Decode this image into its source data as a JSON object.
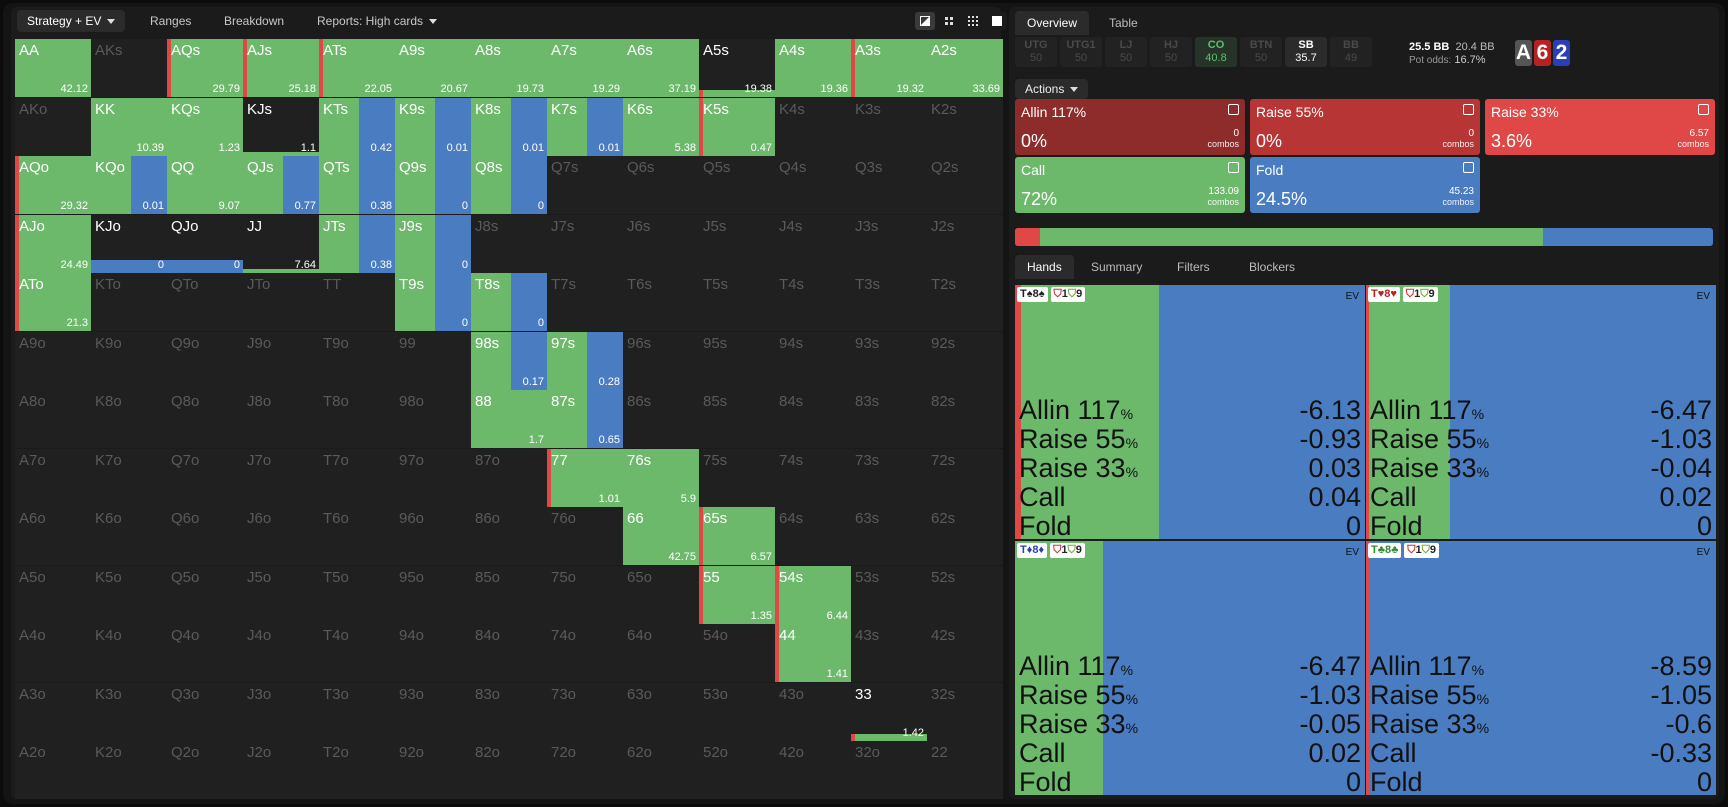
{
  "toolbar": {
    "items": [
      "Strategy + EV",
      "Ranges",
      "Breakdown",
      "Reports: High cards"
    ]
  },
  "right_tabs": [
    "Overview",
    "Table"
  ],
  "seats": [
    {
      "pos": "UTG",
      "stack": "50",
      "state": "fold"
    },
    {
      "pos": "UTG1",
      "stack": "50",
      "state": "fold"
    },
    {
      "pos": "LJ",
      "stack": "50",
      "state": "fold"
    },
    {
      "pos": "HJ",
      "stack": "50",
      "state": "fold"
    },
    {
      "pos": "CO",
      "stack": "40.8",
      "state": "active"
    },
    {
      "pos": "BTN",
      "stack": "50",
      "state": "fold"
    },
    {
      "pos": "SB",
      "stack": "35.7",
      "state": "hero"
    },
    {
      "pos": "BB",
      "stack": "49",
      "state": "fold"
    }
  ],
  "pot": {
    "pot_bb": "25.5 BB",
    "call_bb": "20.4 BB",
    "odds_label": "Pot odds:",
    "odds": "16.7%"
  },
  "board": [
    {
      "rank": "A",
      "color": "#555"
    },
    {
      "rank": "6",
      "color": "#b52222"
    },
    {
      "rank": "2",
      "color": "#2a3fb5"
    }
  ],
  "actions_menu": "Actions",
  "actions": [
    {
      "name": "Allin 117%",
      "pct": "0%",
      "combos": "0",
      "unit": "combos",
      "color": "#8e2b2b"
    },
    {
      "name": "Raise 55%",
      "pct": "0%",
      "combos": "0",
      "unit": "combos",
      "color": "#b83535"
    },
    {
      "name": "Raise 33%",
      "pct": "3.6%",
      "combos": "6.57",
      "unit": "combos",
      "color": "#e04848"
    },
    {
      "name": "Call",
      "pct": "72%",
      "combos": "133.09",
      "unit": "combos",
      "color": "#6db96b"
    },
    {
      "name": "Fold",
      "pct": "24.5%",
      "combos": "45.23",
      "unit": "combos",
      "color": "#4a7cc2"
    }
  ],
  "strategy_bar": {
    "raise33": 3.6,
    "call": 72,
    "fold": 24.5
  },
  "hand_tabs": [
    "Hands",
    "Summary",
    "Filters",
    "Blockers"
  ],
  "colors": {
    "raise": "#e04848",
    "call": "#6db96b",
    "fold": "#4a7cc2"
  },
  "grid_rows": [
    [
      [
        "AA",
        "42.12",
        "g"
      ],
      [
        "AKs",
        "",
        "d"
      ],
      [
        "AQs",
        "29.79",
        "rg"
      ],
      [
        "AJs",
        "25.18",
        "rg"
      ],
      [
        "ATs",
        "22.05",
        "rg"
      ],
      [
        "A9s",
        "20.67",
        "g"
      ],
      [
        "A8s",
        "19.73",
        "g"
      ],
      [
        "A7s",
        "19.29",
        "g"
      ],
      [
        "A6s",
        "37.19",
        "g"
      ],
      [
        "A5s",
        "19.38",
        "gs"
      ],
      [
        "A4s",
        "19.36",
        "g"
      ],
      [
        "A3s",
        "19.32",
        "rg"
      ],
      [
        "A2s",
        "33.69",
        "g"
      ]
    ],
    [
      [
        "AKo",
        "",
        "d"
      ],
      [
        "KK",
        "10.39",
        "g"
      ],
      [
        "KQs",
        "1.23",
        "g"
      ],
      [
        "KJs",
        "1.1",
        "k"
      ],
      [
        "KTs",
        "0.42",
        "gb"
      ],
      [
        "K9s",
        "0.01",
        "gb"
      ],
      [
        "K8s",
        "0.01",
        "gb"
      ],
      [
        "K7s",
        "0.01",
        "gb"
      ],
      [
        "K6s",
        "5.38",
        "g"
      ],
      [
        "K5s",
        "0.47",
        "rg"
      ],
      [
        "K4s",
        "",
        "d"
      ],
      [
        "K3s",
        "",
        "d"
      ],
      [
        "K2s",
        "",
        "d"
      ]
    ],
    [
      [
        "AQo",
        "29.32",
        "rg"
      ],
      [
        "KQo",
        "0.01",
        "gb"
      ],
      [
        "QQ",
        "9.07",
        "g"
      ],
      [
        "QJs",
        "0.77",
        "gb"
      ],
      [
        "QTs",
        "0.38",
        "gb"
      ],
      [
        "Q9s",
        "0",
        "gb"
      ],
      [
        "Q8s",
        "0",
        "gb"
      ],
      [
        "Q7s",
        "",
        "d"
      ],
      [
        "Q6s",
        "",
        "d"
      ],
      [
        "Q5s",
        "",
        "d"
      ],
      [
        "Q4s",
        "",
        "d"
      ],
      [
        "Q3s",
        "",
        "d"
      ],
      [
        "Q2s",
        "",
        "d"
      ]
    ],
    [
      [
        "AJo",
        "24.49",
        "rg"
      ],
      [
        "KJo",
        "0",
        "b"
      ],
      [
        "QJo",
        "0",
        "b"
      ],
      [
        "JJ",
        "7.64",
        "k"
      ],
      [
        "JTs",
        "0.38",
        "gb"
      ],
      [
        "J9s",
        "0",
        "gb"
      ],
      [
        "J8s",
        "",
        "d"
      ],
      [
        "J7s",
        "",
        "d"
      ],
      [
        "J6s",
        "",
        "d"
      ],
      [
        "J5s",
        "",
        "d"
      ],
      [
        "J4s",
        "",
        "d"
      ],
      [
        "J3s",
        "",
        "d"
      ],
      [
        "J2s",
        "",
        "d"
      ]
    ],
    [
      [
        "ATo",
        "21.3",
        "rg"
      ],
      [
        "KTo",
        "",
        "d"
      ],
      [
        "QTo",
        "",
        "d"
      ],
      [
        "JTo",
        "",
        "d"
      ],
      [
        "TT",
        "",
        "d"
      ],
      [
        "T9s",
        "0",
        "gb"
      ],
      [
        "T8s",
        "0",
        "gb"
      ],
      [
        "T7s",
        "",
        "d"
      ],
      [
        "T6s",
        "",
        "d"
      ],
      [
        "T5s",
        "",
        "d"
      ],
      [
        "T4s",
        "",
        "d"
      ],
      [
        "T3s",
        "",
        "d"
      ],
      [
        "T2s",
        "",
        "d"
      ]
    ],
    [
      [
        "A9o",
        "",
        "d"
      ],
      [
        "K9o",
        "",
        "d"
      ],
      [
        "Q9o",
        "",
        "d"
      ],
      [
        "J9o",
        "",
        "d"
      ],
      [
        "T9o",
        "",
        "d"
      ],
      [
        "99",
        "",
        "d"
      ],
      [
        "98s",
        "0.17",
        "gb"
      ],
      [
        "97s",
        "0.28",
        "gb"
      ],
      [
        "96s",
        "",
        "d"
      ],
      [
        "95s",
        "",
        "d"
      ],
      [
        "94s",
        "",
        "d"
      ],
      [
        "93s",
        "",
        "d"
      ],
      [
        "92s",
        "",
        "d"
      ]
    ],
    [
      [
        "A8o",
        "",
        "d"
      ],
      [
        "K8o",
        "",
        "d"
      ],
      [
        "Q8o",
        "",
        "d"
      ],
      [
        "J8o",
        "",
        "d"
      ],
      [
        "T8o",
        "",
        "d"
      ],
      [
        "98o",
        "",
        "d"
      ],
      [
        "88",
        "1.7",
        "g"
      ],
      [
        "87s",
        "0.65",
        "gb"
      ],
      [
        "86s",
        "",
        "d"
      ],
      [
        "85s",
        "",
        "d"
      ],
      [
        "84s",
        "",
        "d"
      ],
      [
        "83s",
        "",
        "d"
      ],
      [
        "82s",
        "",
        "d"
      ]
    ],
    [
      [
        "A7o",
        "",
        "d"
      ],
      [
        "K7o",
        "",
        "d"
      ],
      [
        "Q7o",
        "",
        "d"
      ],
      [
        "J7o",
        "",
        "d"
      ],
      [
        "T7o",
        "",
        "d"
      ],
      [
        "97o",
        "",
        "d"
      ],
      [
        "87o",
        "",
        "d"
      ],
      [
        "77",
        "1.01",
        "rg"
      ],
      [
        "76s",
        "5.9",
        "g"
      ],
      [
        "75s",
        "",
        "d"
      ],
      [
        "74s",
        "",
        "d"
      ],
      [
        "73s",
        "",
        "d"
      ],
      [
        "72s",
        "",
        "d"
      ]
    ],
    [
      [
        "A6o",
        "",
        "d"
      ],
      [
        "K6o",
        "",
        "d"
      ],
      [
        "Q6o",
        "",
        "d"
      ],
      [
        "J6o",
        "",
        "d"
      ],
      [
        "T6o",
        "",
        "d"
      ],
      [
        "96o",
        "",
        "d"
      ],
      [
        "86o",
        "",
        "d"
      ],
      [
        "76o",
        "",
        "d"
      ],
      [
        "66",
        "42.75",
        "g"
      ],
      [
        "65s",
        "6.57",
        "rg"
      ],
      [
        "64s",
        "",
        "d"
      ],
      [
        "63s",
        "",
        "d"
      ],
      [
        "62s",
        "",
        "d"
      ]
    ],
    [
      [
        "A5o",
        "",
        "d"
      ],
      [
        "K5o",
        "",
        "d"
      ],
      [
        "Q5o",
        "",
        "d"
      ],
      [
        "J5o",
        "",
        "d"
      ],
      [
        "T5o",
        "",
        "d"
      ],
      [
        "95o",
        "",
        "d"
      ],
      [
        "85o",
        "",
        "d"
      ],
      [
        "75o",
        "",
        "d"
      ],
      [
        "65o",
        "",
        "d"
      ],
      [
        "55",
        "1.35",
        "rg"
      ],
      [
        "54s",
        "6.44",
        "rg"
      ],
      [
        "53s",
        "",
        "d"
      ],
      [
        "52s",
        "",
        "d"
      ]
    ],
    [
      [
        "A4o",
        "",
        "d"
      ],
      [
        "K4o",
        "",
        "d"
      ],
      [
        "Q4o",
        "",
        "d"
      ],
      [
        "J4o",
        "",
        "d"
      ],
      [
        "T4o",
        "",
        "d"
      ],
      [
        "94o",
        "",
        "d"
      ],
      [
        "84o",
        "",
        "d"
      ],
      [
        "74o",
        "",
        "d"
      ],
      [
        "64o",
        "",
        "d"
      ],
      [
        "54o",
        "",
        "d"
      ],
      [
        "44",
        "1.41",
        "rg"
      ],
      [
        "43s",
        "",
        "d"
      ],
      [
        "42s",
        "",
        "d"
      ]
    ],
    [
      [
        "A3o",
        "",
        "d"
      ],
      [
        "K3o",
        "",
        "d"
      ],
      [
        "Q3o",
        "",
        "d"
      ],
      [
        "J3o",
        "",
        "d"
      ],
      [
        "T3o",
        "",
        "d"
      ],
      [
        "93o",
        "",
        "d"
      ],
      [
        "83o",
        "",
        "d"
      ],
      [
        "73o",
        "",
        "d"
      ],
      [
        "63o",
        "",
        "d"
      ],
      [
        "53o",
        "",
        "d"
      ],
      [
        "43o",
        "",
        "d"
      ],
      [
        "33",
        "1.42",
        "gs"
      ],
      [
        "32s",
        "",
        "d"
      ]
    ],
    [
      [
        "A2o",
        "",
        "d"
      ],
      [
        "K2o",
        "",
        "d"
      ],
      [
        "Q2o",
        "",
        "d"
      ],
      [
        "J2o",
        "",
        "d"
      ],
      [
        "T2o",
        "",
        "d"
      ],
      [
        "92o",
        "",
        "d"
      ],
      [
        "82o",
        "",
        "d"
      ],
      [
        "72o",
        "",
        "d"
      ],
      [
        "62o",
        "",
        "d"
      ],
      [
        "52o",
        "",
        "d"
      ],
      [
        "42o",
        "",
        "d"
      ],
      [
        "32o",
        "",
        "d"
      ],
      [
        "22",
        "",
        "d"
      ]
    ]
  ],
  "hands": [
    {
      "card1": "T♠",
      "card2": "8♠",
      "c1": "#222",
      "c2": "#222",
      "badge_a": "1",
      "badge_b": "9",
      "ev_label": "EV",
      "raise": 1.6,
      "call": 41,
      "rows": [
        [
          "Allin 117",
          "%",
          "-6.13"
        ],
        [
          "Raise 55",
          "%",
          "-0.93"
        ],
        [
          "Raise 33",
          "%",
          "0.03"
        ],
        [
          "Call",
          "",
          "0.04"
        ],
        [
          "Fold",
          "",
          "0"
        ]
      ]
    },
    {
      "card1": "T♥",
      "card2": "8♥",
      "c1": "#b52222",
      "c2": "#b52222",
      "badge_a": "1",
      "badge_b": "9",
      "ev_label": "EV",
      "raise": 0.8,
      "call": 24,
      "rows": [
        [
          "Allin 117",
          "%",
          "-6.47"
        ],
        [
          "Raise 55",
          "%",
          "-1.03"
        ],
        [
          "Raise 33",
          "%",
          "-0.04"
        ],
        [
          "Call",
          "",
          "0.02"
        ],
        [
          "Fold",
          "",
          "0"
        ]
      ]
    },
    {
      "card1": "T♦",
      "card2": "8♦",
      "c1": "#2a3fb5",
      "c2": "#2a3fb5",
      "badge_a": "1",
      "badge_b": "9",
      "ev_label": "EV",
      "raise": 0,
      "call": 25,
      "rows": [
        [
          "Allin 117",
          "%",
          "-6.47"
        ],
        [
          "Raise 55",
          "%",
          "-1.03"
        ],
        [
          "Raise 33",
          "%",
          "-0.05"
        ],
        [
          "Call",
          "",
          "0.02"
        ],
        [
          "Fold",
          "",
          "0"
        ]
      ]
    },
    {
      "card1": "T♣",
      "card2": "8♣",
      "c1": "#2f8c35",
      "c2": "#2f8c35",
      "badge_a": "1",
      "badge_b": "9",
      "ev_label": "EV",
      "raise": 0.8,
      "call": 0,
      "rows": [
        [
          "Allin 117",
          "%",
          "-8.59"
        ],
        [
          "Raise 55",
          "%",
          "-1.05"
        ],
        [
          "Raise 33",
          "%",
          "-0.6"
        ],
        [
          "Call",
          "",
          "-0.33"
        ],
        [
          "Fold",
          "",
          "0"
        ]
      ]
    }
  ]
}
